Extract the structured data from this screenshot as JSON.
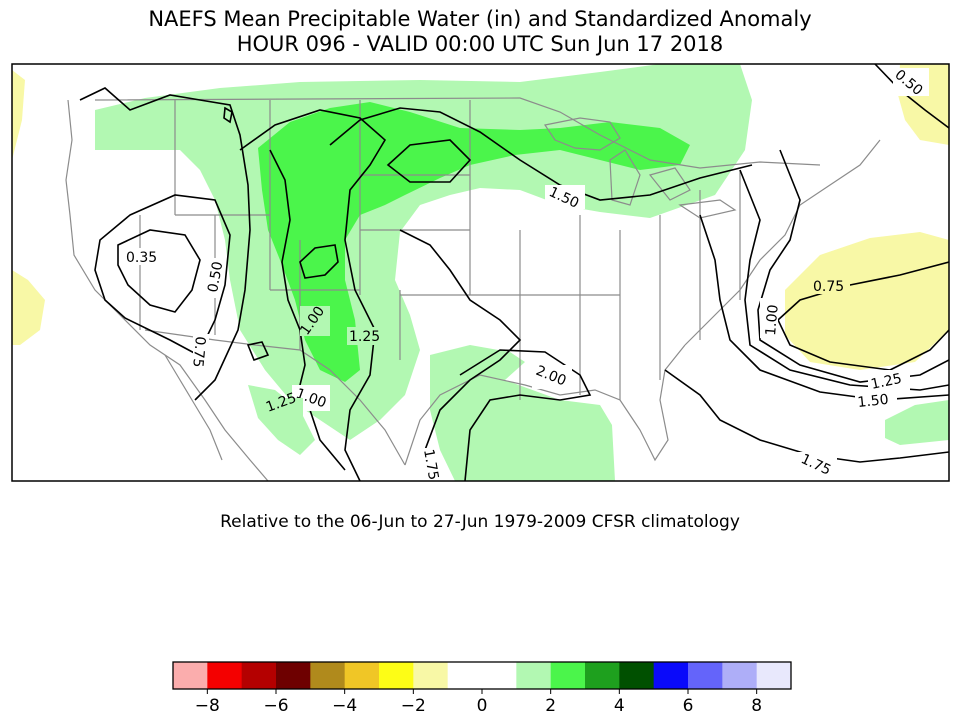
{
  "header": {
    "title": "NAEFS Mean Precipitable Water (in) and Standardized Anomaly",
    "subtitle": "HOUR 096 - VALID 00:00 UTC Sun Jun 17 2018"
  },
  "map": {
    "contour_labels": [
      "0.35",
      "0.50",
      "0.75",
      "1.00",
      "1.25",
      "1.00",
      "1.25",
      "2.00",
      "1.50",
      "1.75",
      "0.50",
      "0.75",
      "1.00",
      "1.25",
      "1.50",
      "1.75"
    ],
    "colors": {
      "land_line": "#8c8c8c",
      "contour": "#000000",
      "anomaly_pos_1": "#b2f8b2",
      "anomaly_pos_2": "#4bf54b",
      "anomaly_neg_1": "#f8f8a6"
    }
  },
  "caption": "Relative to the 06-Jun to 27-Jun 1979-2009 CFSR climatology",
  "colorbar": {
    "ticks": [
      "−8",
      "−6",
      "−4",
      "−2",
      "0",
      "2",
      "4",
      "6",
      "8"
    ],
    "colors": [
      "#fbadad",
      "#f40000",
      "#b40000",
      "#6e0000",
      "#b08a1c",
      "#f0c626",
      "#fdfd16",
      "#f8f8a6",
      "#ffffff",
      "#ffffff",
      "#b2f8b2",
      "#4bf54b",
      "#1ea01e",
      "#005000",
      "#0a0afa",
      "#6464fa",
      "#aeaef8",
      "#e8e8fc"
    ]
  }
}
